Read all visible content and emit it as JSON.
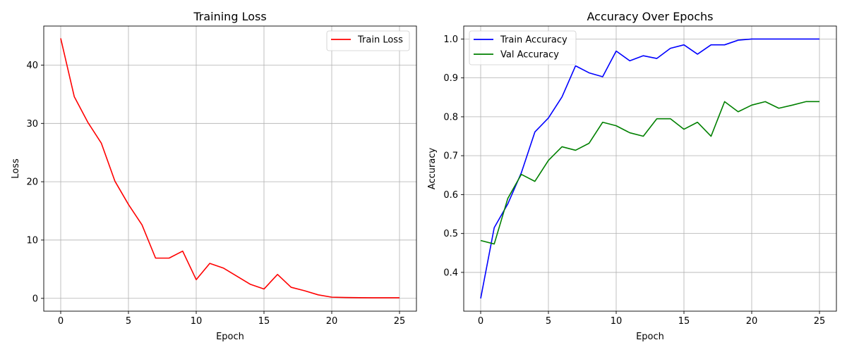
{
  "chart_data": [
    {
      "type": "line",
      "title": "Training Loss",
      "xlabel": "Epoch",
      "ylabel": "Loss",
      "xlim": [
        -1.25,
        26.25
      ],
      "ylim": [
        -2.2,
        46.7
      ],
      "xticks": [
        0,
        5,
        10,
        15,
        20,
        25
      ],
      "yticks": [
        0,
        10,
        20,
        30,
        40
      ],
      "grid": true,
      "legend_loc": "upper right",
      "x": [
        0,
        1,
        2,
        3,
        4,
        5,
        6,
        7,
        8,
        9,
        10,
        11,
        12,
        13,
        14,
        15,
        16,
        17,
        18,
        19,
        20,
        21,
        22,
        23,
        24,
        25
      ],
      "series": [
        {
          "name": "Train Loss",
          "color": "#ff0000",
          "values": [
            44.6,
            34.6,
            30.2,
            26.6,
            20.1,
            16.1,
            12.6,
            6.9,
            6.9,
            8.1,
            3.2,
            6.0,
            5.2,
            3.8,
            2.4,
            1.6,
            4.1,
            1.9,
            1.3,
            0.6,
            0.2,
            0.15,
            0.12,
            0.1,
            0.1,
            0.1
          ]
        }
      ]
    },
    {
      "type": "line",
      "title": "Accuracy Over Epochs",
      "xlabel": "Epoch",
      "ylabel": "Accuracy",
      "xlim": [
        -1.25,
        26.25
      ],
      "ylim": [
        0.3003,
        1.0333
      ],
      "xticks": [
        0,
        5,
        10,
        15,
        20,
        25
      ],
      "yticks": [
        0.4,
        0.5,
        0.6,
        0.7,
        0.8,
        0.9,
        1.0
      ],
      "ytick_labels": [
        "0.4",
        "0.5",
        "0.6",
        "0.7",
        "0.8",
        "0.9",
        "1.0"
      ],
      "grid": true,
      "legend_loc": "upper left",
      "x": [
        0,
        1,
        2,
        3,
        4,
        5,
        6,
        7,
        8,
        9,
        10,
        11,
        12,
        13,
        14,
        15,
        16,
        17,
        18,
        19,
        20,
        21,
        22,
        23,
        24,
        25
      ],
      "series": [
        {
          "name": "Train Accuracy",
          "color": "#0000ff",
          "values": [
            0.333,
            0.515,
            0.576,
            0.656,
            0.761,
            0.797,
            0.851,
            0.931,
            0.913,
            0.903,
            0.969,
            0.944,
            0.957,
            0.95,
            0.976,
            0.985,
            0.961,
            0.985,
            0.985,
            0.997,
            1.0,
            1.0,
            1.0,
            1.0,
            1.0,
            1.0
          ]
        },
        {
          "name": "Val Accuracy",
          "color": "#008000",
          "values": [
            0.482,
            0.473,
            0.59,
            0.652,
            0.634,
            0.688,
            0.723,
            0.714,
            0.732,
            0.786,
            0.777,
            0.759,
            0.75,
            0.795,
            0.795,
            0.768,
            0.786,
            0.75,
            0.839,
            0.813,
            0.83,
            0.839,
            0.822,
            0.83,
            0.839,
            0.839
          ]
        }
      ]
    }
  ]
}
